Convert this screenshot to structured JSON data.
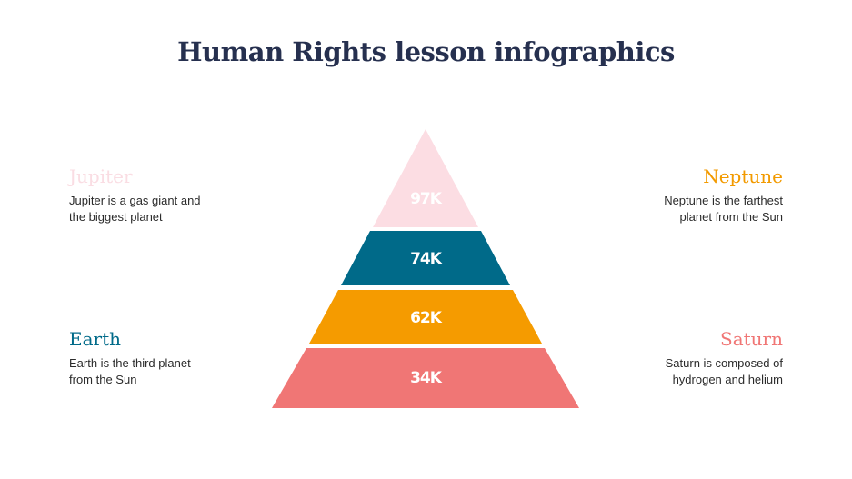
{
  "title": "Human Rights lesson infographics",
  "items": [
    {
      "name": "Jupiter",
      "text": "Jupiter is a gas giant and the biggest planet",
      "color": "#fadde3"
    },
    {
      "name": "Neptune",
      "text": "Neptune is the farthest planet from the Sun",
      "color": "#f29a00"
    },
    {
      "name": "Earth",
      "text": "Earth is the third planet from the Sun",
      "color": "#006a89"
    },
    {
      "name": "Saturn",
      "text": "Saturn is composed of hydrogen and helium",
      "color": "#f07675"
    }
  ],
  "pyramid": [
    {
      "value": "97K",
      "color": "#fcdde3"
    },
    {
      "value": "74K",
      "color": "#006a89"
    },
    {
      "value": "62K",
      "color": "#f59b00"
    },
    {
      "value": "34K",
      "color": "#f07675"
    }
  ]
}
